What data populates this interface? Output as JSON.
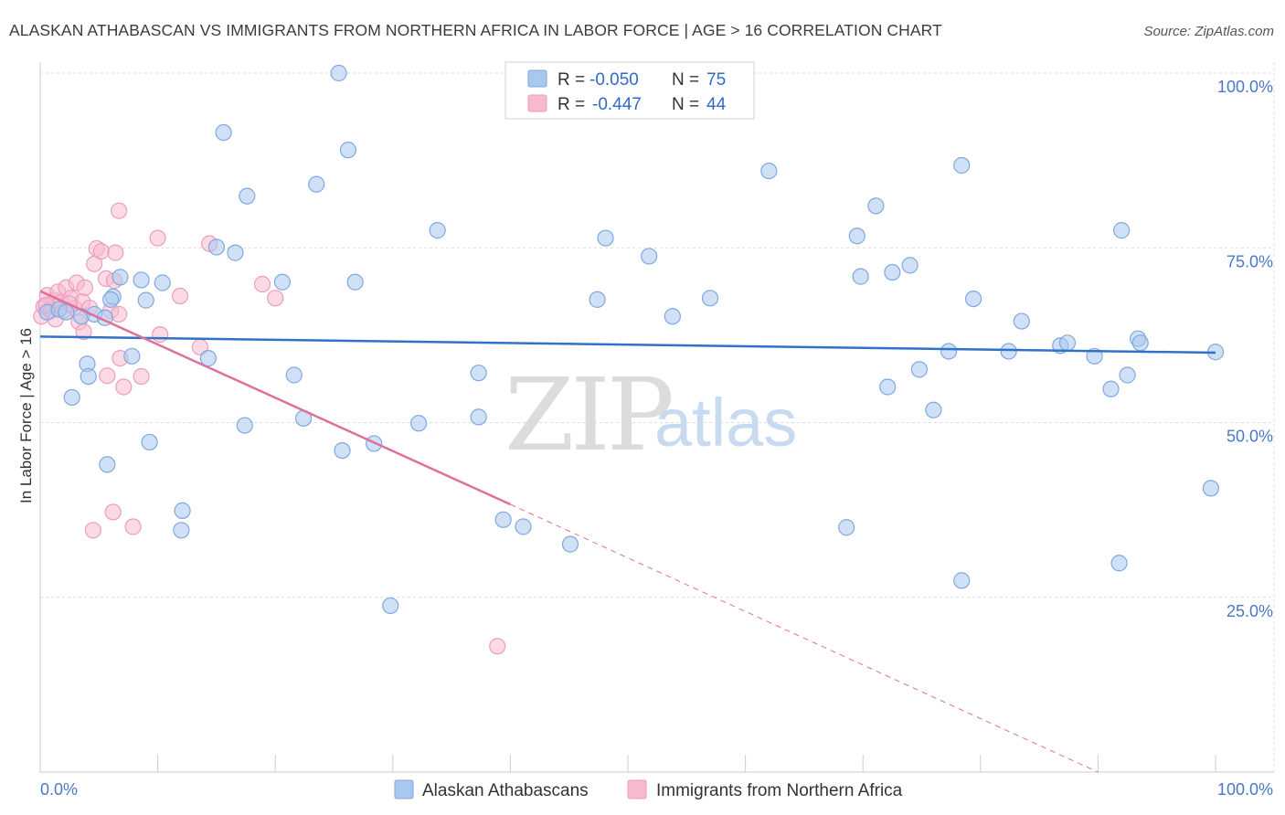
{
  "header": {
    "title": "ALASKAN ATHABASCAN VS IMMIGRANTS FROM NORTHERN AFRICA IN LABOR FORCE | AGE > 16 CORRELATION CHART",
    "source": "Source: ZipAtlas.com"
  },
  "watermark": {
    "zip": "ZIP",
    "atlas": "atlas"
  },
  "legend": {
    "rows": [
      {
        "r_label": "R =",
        "r_value": "-0.050",
        "n_label": "N =",
        "n_value": "75"
      },
      {
        "r_label": "R =",
        "r_value": "-0.447",
        "n_label": "N =",
        "n_value": "44"
      }
    ]
  },
  "bottom_legend": {
    "series1": "Alaskan Athabascans",
    "series2": "Immigrants from Northern Africa"
  },
  "colors": {
    "series1_fill": "#a9c8f0",
    "series1_stroke": "#7fa8e0",
    "series1_line": "#2f72c8",
    "series2_fill": "#f7b9cf",
    "series2_stroke": "#ee9dbb",
    "series2_line": "#e0709a",
    "grid": "#dddddd",
    "tick_text": "#4a78c6"
  },
  "chart_data": {
    "type": "scatter",
    "title": "ALASKAN ATHABASCAN VS IMMIGRANTS FROM NORTHERN AFRICA IN LABOR FORCE | AGE > 16 CORRELATION CHART",
    "xlabel": "",
    "ylabel": "In Labor Force | Age > 16",
    "xlim": [
      0,
      100
    ],
    "ylim": [
      0,
      102
    ],
    "x_tick_labels": [
      "0.0%",
      "100.0%"
    ],
    "y_ticks": [
      25,
      50,
      75,
      100
    ],
    "y_tick_labels": [
      "25.0%",
      "50.0%",
      "75.0%",
      "100.0%"
    ],
    "grid": true,
    "series": [
      {
        "name": "Alaskan Athabascans",
        "R": -0.05,
        "N": 75,
        "trend": {
          "x": [
            0,
            100
          ],
          "y": [
            62.3,
            60.0
          ],
          "dashed_after": null
        },
        "points": [
          [
            0.6,
            65.8
          ],
          [
            1.6,
            66.2
          ],
          [
            2.2,
            65.8
          ],
          [
            2.7,
            53.6
          ],
          [
            3.5,
            65.2
          ],
          [
            4.0,
            58.4
          ],
          [
            4.1,
            56.6
          ],
          [
            4.6,
            65.5
          ],
          [
            5.5,
            65.0
          ],
          [
            6.2,
            68.0
          ],
          [
            5.7,
            44.0
          ],
          [
            6.0,
            67.6
          ],
          [
            6.8,
            70.8
          ],
          [
            7.8,
            59.5
          ],
          [
            8.6,
            70.4
          ],
          [
            9.0,
            67.5
          ],
          [
            9.3,
            47.2
          ],
          [
            10.4,
            70.0
          ],
          [
            12.1,
            37.4
          ],
          [
            12.0,
            34.6
          ],
          [
            14.3,
            59.2
          ],
          [
            15.0,
            75.1
          ],
          [
            15.6,
            91.5
          ],
          [
            16.6,
            74.3
          ],
          [
            17.4,
            49.6
          ],
          [
            17.6,
            82.4
          ],
          [
            20.6,
            70.1
          ],
          [
            21.6,
            56.8
          ],
          [
            22.4,
            50.6
          ],
          [
            23.5,
            84.1
          ],
          [
            25.4,
            100.0
          ],
          [
            25.7,
            46.0
          ],
          [
            26.2,
            89.0
          ],
          [
            26.8,
            70.1
          ],
          [
            28.4,
            47.0
          ],
          [
            29.8,
            23.8
          ],
          [
            32.2,
            49.9
          ],
          [
            33.8,
            77.5
          ],
          [
            37.3,
            50.8
          ],
          [
            37.3,
            57.1
          ],
          [
            39.4,
            36.1
          ],
          [
            41.1,
            35.1
          ],
          [
            45.1,
            32.6
          ],
          [
            47.4,
            67.6
          ],
          [
            48.1,
            76.4
          ],
          [
            51.8,
            73.8
          ],
          [
            53.8,
            65.2
          ],
          [
            57.0,
            67.8
          ],
          [
            62.0,
            86.0
          ],
          [
            68.6,
            35.0
          ],
          [
            69.5,
            76.7
          ],
          [
            69.8,
            70.9
          ],
          [
            71.1,
            81.0
          ],
          [
            72.1,
            55.1
          ],
          [
            72.5,
            71.5
          ],
          [
            74.0,
            72.5
          ],
          [
            74.8,
            57.6
          ],
          [
            77.3,
            60.2
          ],
          [
            76.0,
            51.8
          ],
          [
            78.4,
            86.8
          ],
          [
            78.4,
            27.4
          ],
          [
            79.4,
            67.7
          ],
          [
            82.4,
            60.2
          ],
          [
            83.5,
            64.5
          ],
          [
            86.8,
            61.0
          ],
          [
            87.4,
            61.4
          ],
          [
            89.7,
            59.5
          ],
          [
            91.1,
            54.8
          ],
          [
            91.8,
            29.9
          ],
          [
            92.0,
            77.5
          ],
          [
            93.4,
            62.0
          ],
          [
            93.6,
            61.4
          ],
          [
            99.6,
            40.6
          ],
          [
            100.0,
            60.1
          ],
          [
            92.5,
            56.8
          ]
        ]
      },
      {
        "name": "Immigrants from Northern Africa",
        "R": -0.447,
        "N": 44,
        "trend": {
          "x": [
            0,
            40,
            90
          ],
          "y": [
            68.8,
            38.3,
            0
          ],
          "dashed_after": 40
        },
        "points": [
          [
            0.1,
            65.2
          ],
          [
            0.3,
            66.6
          ],
          [
            0.6,
            68.2
          ],
          [
            0.9,
            66.0
          ],
          [
            1.2,
            67.5
          ],
          [
            1.5,
            68.7
          ],
          [
            1.8,
            67.2
          ],
          [
            2.2,
            69.3
          ],
          [
            2.6,
            67.8
          ],
          [
            2.9,
            66.4
          ],
          [
            3.1,
            70.0
          ],
          [
            3.3,
            64.4
          ],
          [
            3.6,
            67.3
          ],
          [
            3.8,
            69.3
          ],
          [
            3.7,
            63.0
          ],
          [
            4.2,
            66.4
          ],
          [
            4.6,
            72.7
          ],
          [
            4.5,
            34.6
          ],
          [
            4.8,
            74.9
          ],
          [
            5.2,
            74.5
          ],
          [
            5.6,
            70.6
          ],
          [
            5.7,
            56.7
          ],
          [
            6.0,
            66.0
          ],
          [
            6.3,
            70.3
          ],
          [
            6.2,
            37.2
          ],
          [
            6.4,
            74.3
          ],
          [
            6.7,
            65.5
          ],
          [
            6.7,
            80.3
          ],
          [
            6.8,
            59.2
          ],
          [
            7.1,
            55.1
          ],
          [
            7.9,
            35.1
          ],
          [
            8.6,
            56.6
          ],
          [
            10.0,
            76.4
          ],
          [
            10.2,
            62.6
          ],
          [
            11.9,
            68.1
          ],
          [
            13.6,
            60.8
          ],
          [
            14.4,
            75.6
          ],
          [
            18.9,
            69.8
          ],
          [
            20.0,
            67.8
          ],
          [
            38.9,
            18.0
          ],
          [
            2.0,
            66.0
          ],
          [
            1.3,
            64.8
          ],
          [
            0.5,
            66.8
          ],
          [
            2.5,
            67.0
          ]
        ]
      }
    ]
  }
}
